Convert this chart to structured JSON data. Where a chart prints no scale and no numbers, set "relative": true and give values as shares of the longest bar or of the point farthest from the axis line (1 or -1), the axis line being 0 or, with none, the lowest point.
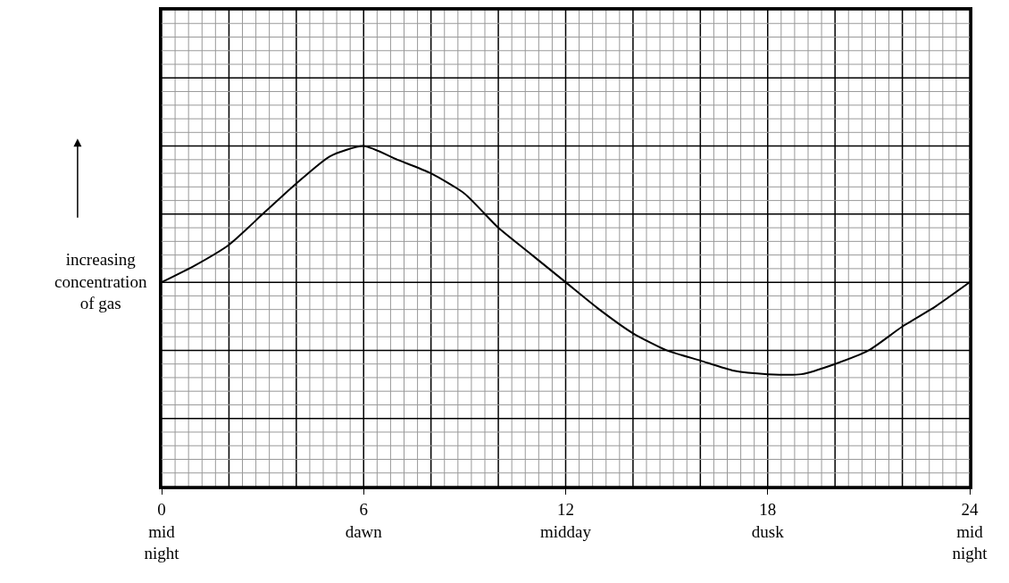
{
  "chart_data": {
    "type": "line",
    "relative": true,
    "ylabel": "increasing\nconcentration\nof gas",
    "x": [
      0,
      1,
      2,
      3,
      4,
      5,
      6,
      7,
      8,
      9,
      10,
      11,
      12,
      13,
      14,
      15,
      16,
      17,
      18,
      19,
      20,
      21,
      22,
      23,
      24
    ],
    "series": [
      {
        "color": "#000000",
        "values": [
          0.6,
          0.65,
          0.71,
          0.8,
          0.89,
          0.97,
          1.0,
          0.96,
          0.92,
          0.86,
          0.76,
          0.68,
          0.6,
          0.52,
          0.45,
          0.4,
          0.37,
          0.34,
          0.33,
          0.33,
          0.36,
          0.4,
          0.47,
          0.53,
          0.6
        ]
      }
    ],
    "xlim": [
      0,
      24
    ],
    "xticks": [
      {
        "value": 0,
        "label": "0\nmid\nnight"
      },
      {
        "value": 6,
        "label": "6\ndawn"
      },
      {
        "value": 12,
        "label": "12\nmidday"
      },
      {
        "value": 18,
        "label": "18\ndusk"
      },
      {
        "value": 24,
        "label": "24\nmid\nnight"
      }
    ],
    "grid": true,
    "marker": "none",
    "line_style": "solid"
  }
}
